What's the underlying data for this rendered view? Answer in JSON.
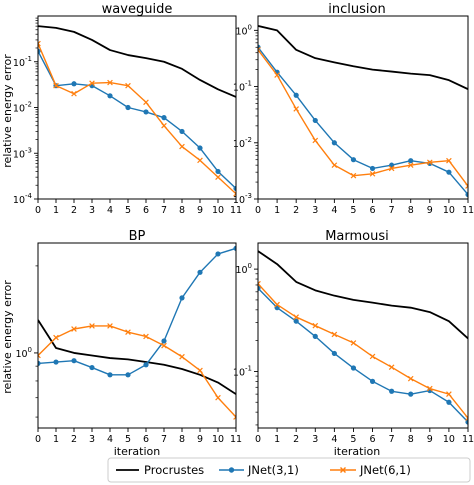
{
  "chart_data": [
    {
      "type": "line",
      "title": "waveguide",
      "xlabel": "",
      "ylabel": "relative energy error",
      "scale": "log",
      "ylim": [
        0.0001,
        1
      ],
      "yticks": [
        {
          "base": "10",
          "exp": "-4",
          "value": 0.0001
        },
        {
          "base": "10",
          "exp": "-3",
          "value": 0.001
        },
        {
          "base": "10",
          "exp": "-2",
          "value": 0.01
        },
        {
          "base": "10",
          "exp": "-1",
          "value": 0.1
        }
      ],
      "x": [
        0,
        1,
        2,
        3,
        4,
        5,
        6,
        7,
        8,
        9,
        10,
        11
      ],
      "series": [
        {
          "name": "Procrustes",
          "values": [
            0.6,
            0.55,
            0.45,
            0.3,
            0.18,
            0.14,
            0.12,
            0.1,
            0.07,
            0.04,
            0.025,
            0.017
          ]
        },
        {
          "name": "JNet(3,1)",
          "values": [
            0.17,
            0.03,
            0.033,
            0.03,
            0.018,
            0.01,
            0.008,
            0.006,
            0.003,
            0.0013,
            0.0004,
            0.00017
          ]
        },
        {
          "name": "JNet(6,1)",
          "values": [
            0.25,
            0.03,
            0.02,
            0.034,
            0.035,
            0.03,
            0.013,
            0.004,
            0.0014,
            0.0007,
            0.0003,
            0.00013
          ]
        }
      ]
    },
    {
      "type": "line",
      "title": "inclusion",
      "xlabel": "",
      "ylabel": "",
      "scale": "log",
      "ylim": [
        0.001,
        1.8
      ],
      "yticks": [
        {
          "base": "10",
          "exp": "-3",
          "value": 0.001
        },
        {
          "base": "10",
          "exp": "-2",
          "value": 0.01
        },
        {
          "base": "10",
          "exp": "-1",
          "value": 0.1
        },
        {
          "base": "10",
          "exp": "0",
          "value": 1
        }
      ],
      "x": [
        0,
        1,
        2,
        3,
        4,
        5,
        6,
        7,
        8,
        9,
        10,
        11
      ],
      "series": [
        {
          "name": "Procrustes",
          "values": [
            1.2,
            1.0,
            0.45,
            0.32,
            0.27,
            0.23,
            0.2,
            0.185,
            0.17,
            0.16,
            0.13,
            0.09
          ]
        },
        {
          "name": "JNet(3,1)",
          "values": [
            0.5,
            0.18,
            0.07,
            0.025,
            0.01,
            0.005,
            0.0035,
            0.004,
            0.0048,
            0.0043,
            0.003,
            0.0012
          ]
        },
        {
          "name": "JNet(6,1)",
          "values": [
            0.45,
            0.16,
            0.04,
            0.011,
            0.004,
            0.0026,
            0.0028,
            0.0035,
            0.004,
            0.0045,
            0.0048,
            0.0017
          ]
        }
      ]
    },
    {
      "type": "line",
      "title": "BP",
      "xlabel": "iteration",
      "ylabel": "relative energy error",
      "scale": "log",
      "ylim": [
        0.55,
        2.4
      ],
      "yticks": [
        {
          "base": "10",
          "exp": "0",
          "value": 1
        }
      ],
      "x": [
        0,
        1,
        2,
        3,
        4,
        5,
        6,
        7,
        8,
        9,
        10,
        11
      ],
      "series": [
        {
          "name": "Procrustes",
          "values": [
            1.3,
            1.04,
            1.0,
            0.98,
            0.96,
            0.95,
            0.93,
            0.91,
            0.88,
            0.84,
            0.79,
            0.72
          ]
        },
        {
          "name": "JNet(3,1)",
          "values": [
            0.92,
            0.93,
            0.94,
            0.89,
            0.84,
            0.84,
            0.91,
            1.1,
            1.55,
            1.9,
            2.2,
            2.3
          ]
        },
        {
          "name": "JNet(6,1)",
          "values": [
            0.98,
            1.13,
            1.21,
            1.24,
            1.24,
            1.18,
            1.14,
            1.06,
            0.97,
            0.87,
            0.7,
            0.6
          ]
        }
      ]
    },
    {
      "type": "line",
      "title": "Marmousi",
      "xlabel": "iteration",
      "ylabel": "",
      "scale": "log",
      "ylim": [
        0.028,
        1.8
      ],
      "yticks": [
        {
          "base": "10",
          "exp": "-1",
          "value": 0.1
        },
        {
          "base": "10",
          "exp": "0",
          "value": 1
        }
      ],
      "x": [
        0,
        1,
        2,
        3,
        4,
        5,
        6,
        7,
        8,
        9,
        10,
        11
      ],
      "series": [
        {
          "name": "Procrustes",
          "values": [
            1.5,
            1.12,
            0.75,
            0.62,
            0.55,
            0.5,
            0.47,
            0.44,
            0.42,
            0.38,
            0.31,
            0.21
          ]
        },
        {
          "name": "JNet(3,1)",
          "values": [
            0.65,
            0.42,
            0.31,
            0.22,
            0.15,
            0.108,
            0.08,
            0.064,
            0.06,
            0.065,
            0.05,
            0.032
          ]
        },
        {
          "name": "JNet(6,1)",
          "values": [
            0.72,
            0.45,
            0.34,
            0.28,
            0.23,
            0.19,
            0.14,
            0.11,
            0.085,
            0.068,
            0.06,
            0.035
          ]
        }
      ]
    }
  ],
  "xticks": [
    "0",
    "1",
    "2",
    "3",
    "4",
    "5",
    "6",
    "7",
    "8",
    "9",
    "10",
    "11"
  ],
  "legend": {
    "placement": "bottom",
    "items": [
      {
        "label": "Procrustes",
        "color": "#000000",
        "marker": "none"
      },
      {
        "label": "JNet(3,1)",
        "color": "#1f77b4",
        "marker": "circle"
      },
      {
        "label": "JNet(6,1)",
        "color": "#ff7f0e",
        "marker": "x"
      }
    ]
  },
  "colors": {
    "procrustes": "#000000",
    "jnet31": "#1f77b4",
    "jnet61": "#ff7f0e",
    "frame": "#000000"
  }
}
